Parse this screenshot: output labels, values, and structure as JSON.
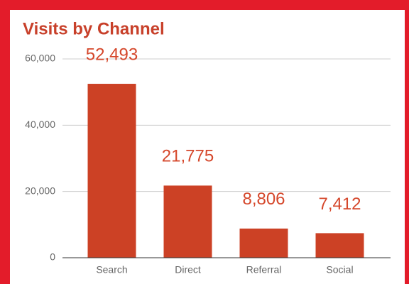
{
  "chart_data": {
    "type": "bar",
    "title": "Visits by Channel",
    "categories": [
      "Search",
      "Direct",
      "Referral",
      "Social"
    ],
    "values": [
      52493,
      21775,
      8806,
      7412
    ],
    "value_labels": [
      "52,493",
      "21,775",
      "8,806",
      "7,412"
    ],
    "color": "#cc4125",
    "ylim": [
      0,
      60000
    ],
    "yticks": [
      0,
      {
        "value": 20000,
        "label": "20,000"
      },
      {
        "value": 40000,
        "label": "40,000"
      },
      {
        "value": 60000,
        "label": "60,000"
      }
    ],
    "grid": true
  }
}
